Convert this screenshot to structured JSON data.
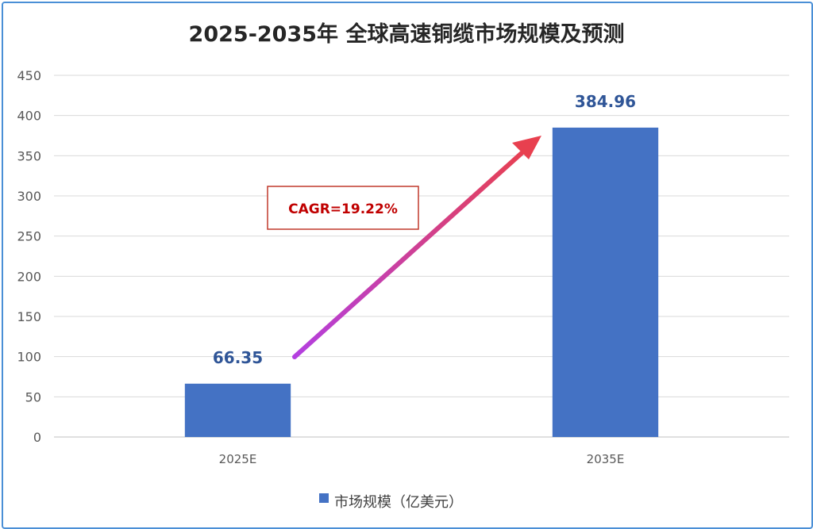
{
  "chart_data": {
    "type": "bar",
    "title": "2025-2035年 全球高速铜缆市场规模及预测",
    "categories": [
      "2025E",
      "2035E"
    ],
    "series": [
      {
        "name": "市场规模（亿美元）",
        "values": [
          66.35,
          384.96
        ],
        "labels": [
          "66.35",
          "384.96"
        ]
      }
    ],
    "ylim": [
      0,
      450
    ],
    "yticks": [
      0,
      50,
      100,
      150,
      200,
      250,
      300,
      350,
      400,
      450
    ],
    "grid": true,
    "legend_position": "bottom",
    "annotation": {
      "text": "CAGR=19.22%",
      "arrow": "from 2025E bar toward 2035E bar"
    },
    "colors": {
      "bar": "#4472c4",
      "arrow": "gradient purple to red",
      "annotation": "#c00000"
    }
  }
}
